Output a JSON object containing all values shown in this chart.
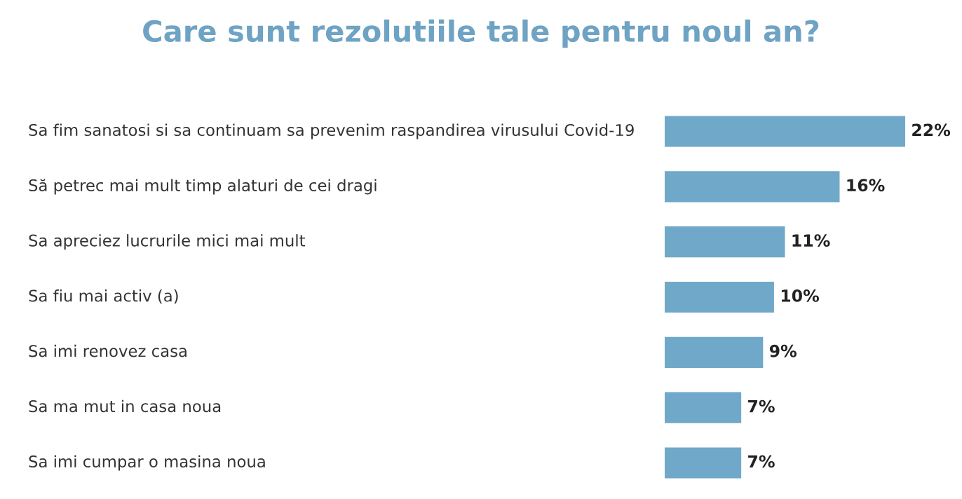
{
  "chart_data": {
    "type": "bar",
    "orientation": "horizontal",
    "title": "Care sunt rezolutiile tale pentru noul an?",
    "categories": [
      "Sa fim sanatosi si sa continuam sa prevenim raspandirea virusului Covid-19",
      "Să petrec mai mult timp alaturi de cei dragi",
      "Sa apreciez lucrurile mici mai mult",
      "Sa fiu mai activ (a)",
      "Sa imi renovez casa",
      "Sa ma mut in casa noua",
      "Sa imi cumpar o masina noua"
    ],
    "values": [
      22,
      16,
      11,
      10,
      9,
      7,
      7
    ],
    "value_labels": [
      "22%",
      "16%",
      "11%",
      "10%",
      "9%",
      "7%",
      "7%"
    ],
    "color": "#6fa8c9"
  }
}
